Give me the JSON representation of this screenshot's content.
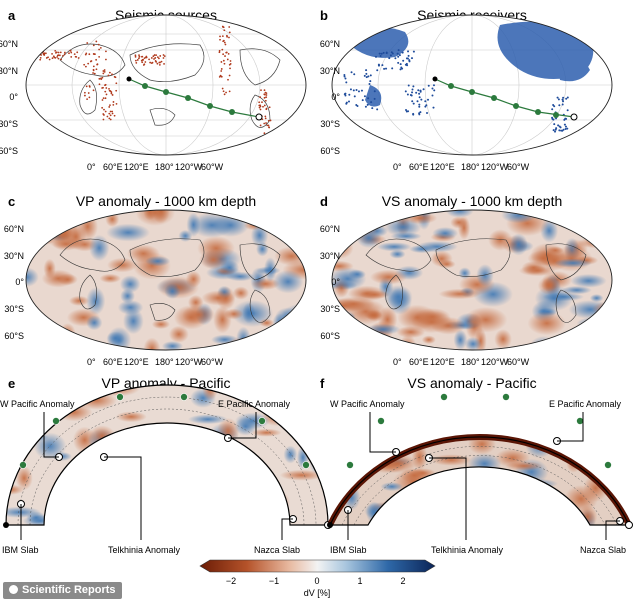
{
  "panels": {
    "a": {
      "letter": "a",
      "title": "Seismic sources"
    },
    "b": {
      "letter": "b",
      "title": "Seismic receivers"
    },
    "c": {
      "letter": "c",
      "title": "VP anomaly - 1000 km depth"
    },
    "d": {
      "letter": "d",
      "title": "VS anomaly - 1000 km depth"
    },
    "e": {
      "letter": "e",
      "title": "VP anomaly - Pacific"
    },
    "f": {
      "letter": "f",
      "title": "VS anomaly - Pacific"
    }
  },
  "lat_labels": [
    "60°N",
    "30°N",
    "0°",
    "30°S",
    "60°S"
  ],
  "lon_labels": [
    "0°",
    "60°E",
    "120°E",
    "180°",
    "120°W",
    "60°W"
  ],
  "annotations": {
    "w_pacific": "W Pacific Anomaly",
    "e_pacific": "E Pacific Anomaly",
    "ibm": "IBM Slab",
    "telkhinia": "Telkhinia Anomaly",
    "nazca": "Nazca Slab"
  },
  "colorbar": {
    "label": "dV [%]",
    "ticks": [
      "−2",
      "−1",
      "0",
      "1",
      "2"
    ],
    "colors": {
      "negative": "#8e2b0e",
      "neutral": "#f3f3f3",
      "positive": "#0f2f6b"
    }
  },
  "credit": "Scientific Reports",
  "colors": {
    "source_dots": "#b03a1d",
    "receiver_dots": "#1f4c9b",
    "path": "#2c7a3d",
    "continent": "#444444"
  }
}
